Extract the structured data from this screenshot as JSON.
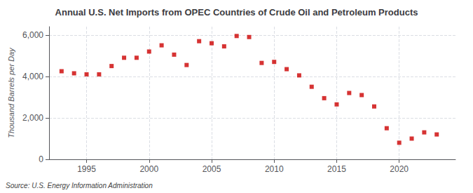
{
  "chart_data": {
    "type": "scatter",
    "title": "Annual U.S. Net Imports from OPEC Countries of Crude Oil and Petroleum Products",
    "ylabel": "Thousand Barrels per Day",
    "annotation": "Source: U.S. Energy Information Administration",
    "x": [
      1993,
      1994,
      1995,
      1996,
      1997,
      1998,
      1999,
      2000,
      2001,
      2002,
      2003,
      2004,
      2005,
      2006,
      2007,
      2008,
      2009,
      2010,
      2011,
      2012,
      2013,
      2014,
      2015,
      2016,
      2017,
      2018,
      2019,
      2020,
      2021,
      2022,
      2023
    ],
    "values": [
      4250,
      4150,
      4100,
      4100,
      4500,
      4900,
      4900,
      5200,
      5500,
      5050,
      4550,
      5700,
      5600,
      5450,
      5950,
      5900,
      4650,
      4700,
      4350,
      4050,
      3500,
      2950,
      2650,
      3200,
      3100,
      2550,
      1500,
      800,
      1000,
      1300,
      1200
    ],
    "color": "#cc0000",
    "marker": "square",
    "xlim": [
      1992,
      2024.5
    ],
    "xticks": [
      1995,
      2000,
      2005,
      2010,
      2015,
      2020
    ],
    "ylim": [
      0,
      6400
    ],
    "yticks": [
      0,
      {
        "value": 2000,
        "label": "2,000"
      },
      {
        "value": 4000,
        "label": "4,000"
      },
      {
        "value": 6000,
        "label": "6,000"
      }
    ],
    "grid": true
  }
}
